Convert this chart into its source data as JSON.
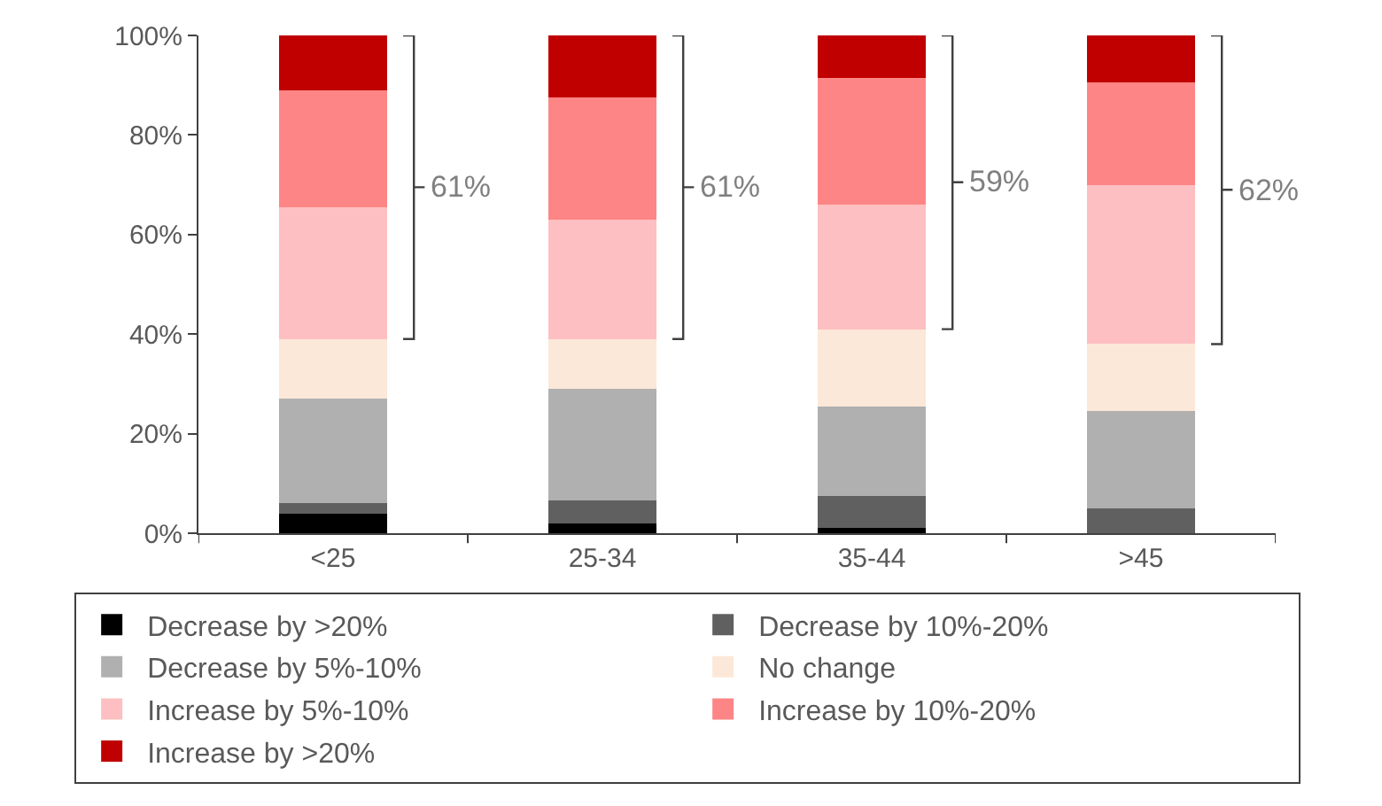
{
  "chart_data": {
    "type": "bar",
    "stacked": true,
    "categories": [
      "<25",
      "25-34",
      "35-44",
      ">45"
    ],
    "series": [
      {
        "name": "Decrease by >20%",
        "color": "#000000",
        "values": [
          4,
          2,
          1,
          0
        ]
      },
      {
        "name": "Decrease by 10%-20%",
        "color": "#606060",
        "values": [
          2,
          4.5,
          6.5,
          5
        ]
      },
      {
        "name": "Decrease by 5%-10%",
        "color": "#b0b0b0",
        "values": [
          21,
          22.5,
          18,
          19.5
        ]
      },
      {
        "name": "No change",
        "color": "#fce8d8",
        "values": [
          12,
          10,
          15.5,
          13.5
        ]
      },
      {
        "name": "Increase by 5%-10%",
        "color": "#fdbfc1",
        "values": [
          26.5,
          24,
          25,
          32
        ]
      },
      {
        "name": "Increase by 10%-20%",
        "color": "#fd8585",
        "values": [
          23.5,
          24.5,
          25.5,
          20.5
        ]
      },
      {
        "name": "Increase by >20%",
        "color": "#c00000",
        "values": [
          11,
          12.5,
          8.5,
          9.5
        ]
      }
    ],
    "ylim": [
      0,
      100
    ],
    "yticks": [
      {
        "value": 0,
        "label": "0%"
      },
      {
        "value": 20,
        "label": "20%"
      },
      {
        "value": 40,
        "label": "40%"
      },
      {
        "value": 60,
        "label": "60%"
      },
      {
        "value": 80,
        "label": "80%"
      },
      {
        "value": 100,
        "label": "100%"
      }
    ],
    "annotations": [
      "61%",
      "61%",
      "59%",
      "62%"
    ],
    "legend": "bottom"
  }
}
